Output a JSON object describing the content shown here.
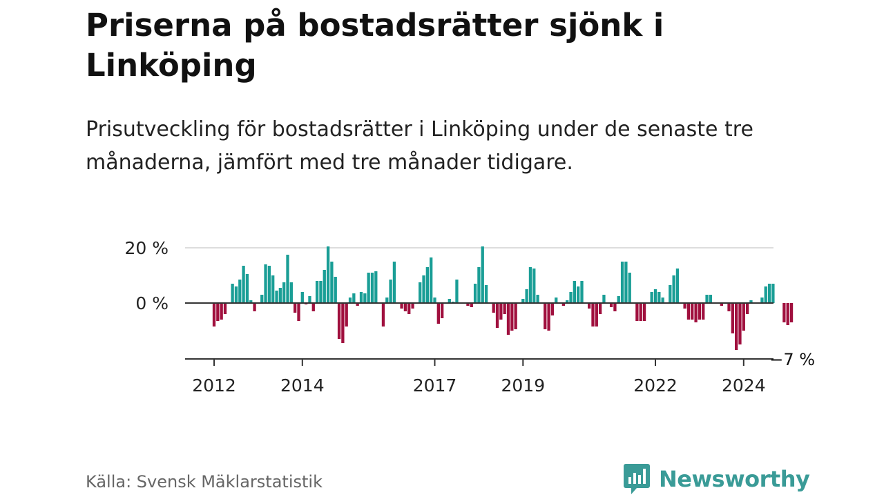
{
  "title": "Priserna på bostadsrätter sjönk i Linköping",
  "subtitle": "Prisutveckling för bostadsrätter i Linköping under de senaste tre månaderna, jämfört med tre månader tidigare.",
  "source": "Källa: Svensk Mäklarstatistik",
  "brand": "Newsworthy",
  "colors": {
    "positive": "#1a9e96",
    "negative": "#a0103e",
    "brand": "#3a9b97",
    "grid": "#dddddd",
    "axis": "#333333"
  },
  "chart_data": {
    "type": "bar",
    "unit": "%",
    "ylim": [
      -20,
      20
    ],
    "yticks": [
      {
        "value": 20,
        "label": "20 %"
      },
      {
        "value": 0,
        "label": "0 %"
      }
    ],
    "xticks": [
      {
        "year": 2012,
        "label": "2012"
      },
      {
        "year": 2014,
        "label": "2014"
      },
      {
        "year": 2017,
        "label": "2017"
      },
      {
        "year": 2019,
        "label": "2019"
      },
      {
        "year": 2022,
        "label": "2022"
      },
      {
        "year": 2024,
        "label": "2024"
      }
    ],
    "start": "2012-01",
    "annotation": {
      "label": "−7 %",
      "value": -7
    },
    "values": [
      -8.5,
      -6.5,
      -6,
      -4,
      0,
      7,
      6,
      8.5,
      13.5,
      10.5,
      1,
      -3,
      0,
      3,
      14,
      13.5,
      10,
      4.5,
      5.5,
      7.5,
      17.5,
      7.5,
      -3.5,
      -6.5,
      4,
      -0.5,
      2.5,
      -3,
      8,
      8,
      12,
      20.5,
      15,
      9.5,
      -13,
      -14.5,
      -8.5,
      2,
      3.5,
      -1,
      4,
      3.5,
      11,
      11,
      11.5,
      0,
      -8.5,
      2,
      8.5,
      15,
      0,
      -2,
      -3,
      -4,
      -2,
      0,
      7.5,
      10,
      13,
      16.5,
      2,
      -7.5,
      -5.5,
      0,
      1.5,
      0.5,
      8.5,
      0,
      0,
      -1,
      -1.5,
      7,
      13,
      20.5,
      6.5,
      0,
      -3.5,
      -9,
      -6,
      -4,
      -11.5,
      -10,
      -9.5,
      0,
      1.5,
      5,
      13,
      12.5,
      3,
      0,
      -9.5,
      -10,
      -4.5,
      2,
      0,
      -1,
      1,
      4,
      8,
      6,
      8,
      0,
      -2,
      -8.5,
      -8.5,
      -4,
      3,
      0,
      -1.5,
      -3,
      2.5,
      15,
      15,
      11,
      0,
      -6.5,
      -6.5,
      -6.5,
      0,
      4,
      5,
      4,
      2,
      0,
      6.5,
      10,
      12.5,
      0,
      -2,
      -6,
      -6,
      -7,
      -6,
      -6,
      3,
      3,
      0,
      0,
      -1,
      0,
      -3,
      -11,
      -17,
      -15,
      -10,
      -4,
      1,
      0,
      0,
      2,
      6,
      7,
      7,
      0,
      0,
      -7,
      -8,
      -7
    ]
  }
}
